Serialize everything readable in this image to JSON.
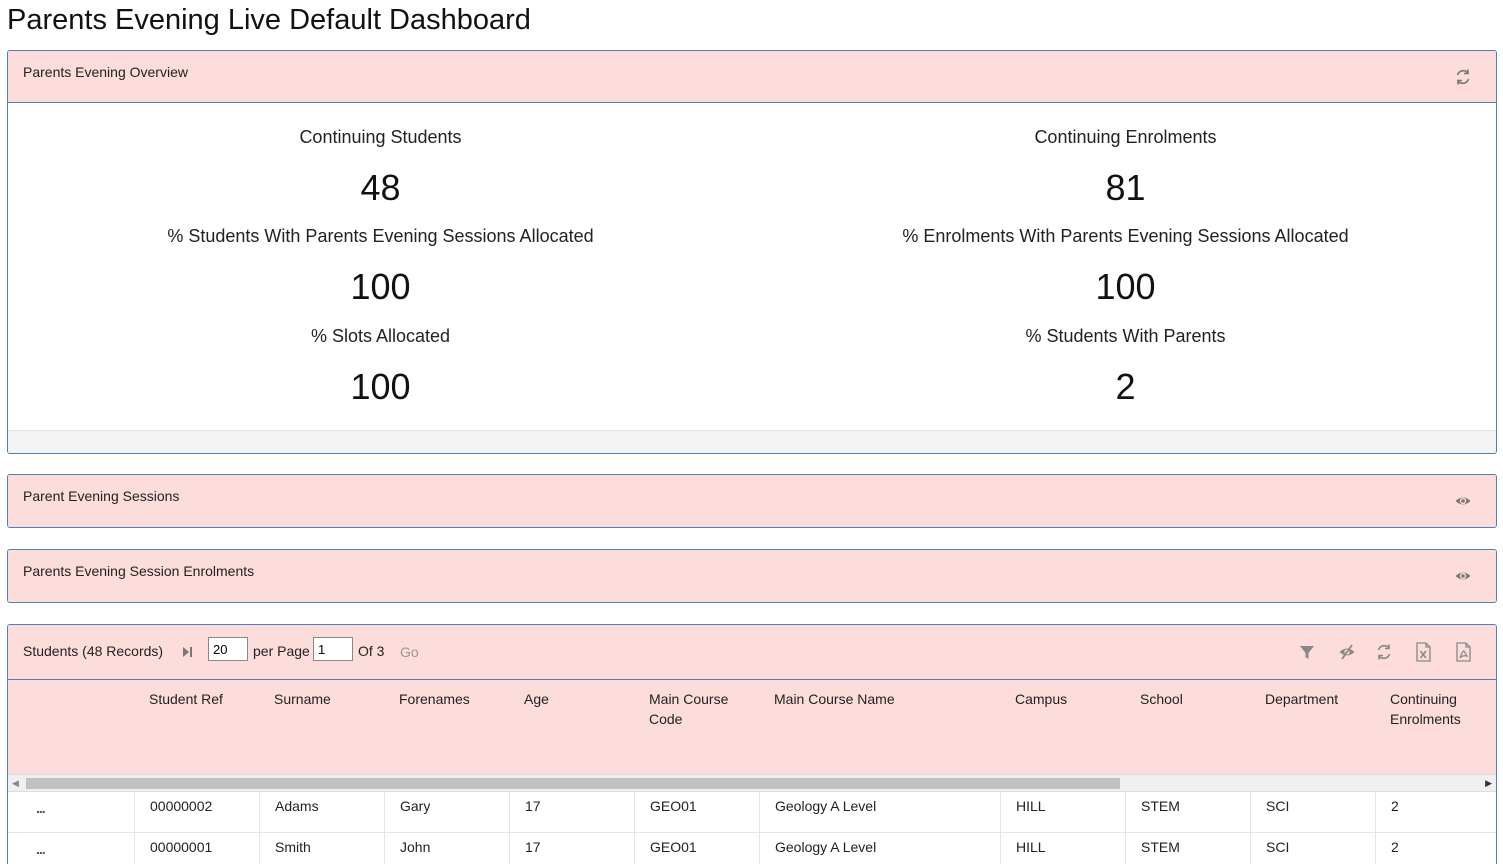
{
  "page": {
    "title": "Parents Evening Live Default Dashboard"
  },
  "overview": {
    "title": "Parents Evening Overview",
    "refresh_icon": "refresh-icon",
    "left": [
      {
        "label": "Continuing Students",
        "value": "48"
      },
      {
        "label": "% Students With Parents Evening Sessions Allocated",
        "value": "100"
      },
      {
        "label": "% Slots Allocated",
        "value": "100"
      }
    ],
    "right": [
      {
        "label": "Continuing Enrolments",
        "value": "81"
      },
      {
        "label": "% Enrolments With Parents Evening Sessions Allocated",
        "value": "100"
      },
      {
        "label": "% Students With Parents",
        "value": "2"
      }
    ]
  },
  "sessions": {
    "title": "Parent Evening Sessions",
    "icon": "eye-icon"
  },
  "enrolments": {
    "title": "Parents Evening Session Enrolments",
    "icon": "eye-icon"
  },
  "students": {
    "title": "Students (48 Records)",
    "per_page_value": "20",
    "per_page_label": "per Page",
    "page_value": "1",
    "of_label": "Of 3",
    "go_label": "Go",
    "toolbar_icons": [
      "filter-icon",
      "hide-columns-icon",
      "refresh-icon",
      "export-excel-icon",
      "export-pdf-icon"
    ],
    "columns": [
      "Student Ref",
      "Surname",
      "Forenames",
      "Age",
      "Main Course Code",
      "Main Course Name",
      "Campus",
      "School",
      "Department",
      "Continuing Enrolments"
    ],
    "columns_display": [
      "Student Ref",
      "Surname",
      "Forenames",
      "Age",
      "Main Course\nCode",
      "Main Course Name",
      "Campus",
      "School",
      "Department",
      "Continuing\nEnrolments"
    ],
    "rows": [
      [
        "00000002",
        "Adams",
        "Gary",
        "17",
        "GEO01",
        "Geology A Level",
        "HILL",
        "STEM",
        "SCI",
        "2"
      ],
      [
        "00000001",
        "Smith",
        "John",
        "17",
        "GEO01",
        "Geology A Level",
        "HILL",
        "STEM",
        "SCI",
        "2"
      ]
    ],
    "row_menu_label": "..."
  },
  "colors": {
    "header_bg": "#fddcdc",
    "border": "#4f7fb8"
  }
}
